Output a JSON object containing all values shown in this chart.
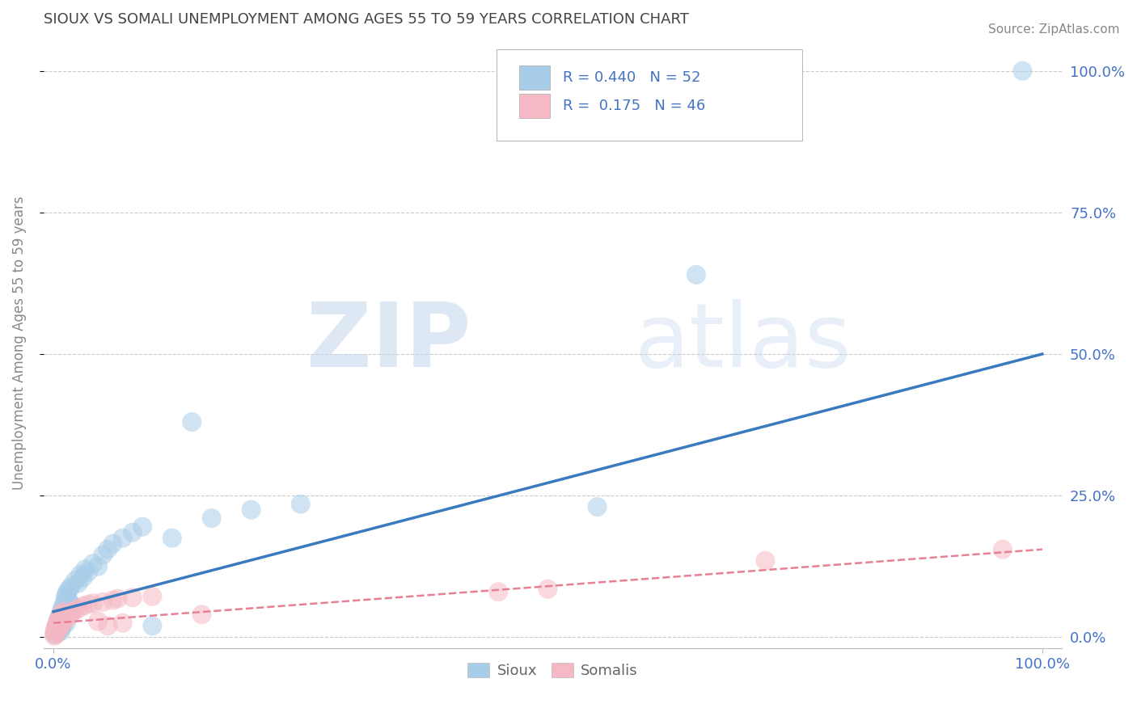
{
  "title": "SIOUX VS SOMALI UNEMPLOYMENT AMONG AGES 55 TO 59 YEARS CORRELATION CHART",
  "source": "Source: ZipAtlas.com",
  "ylabel": "Unemployment Among Ages 55 to 59 years",
  "watermark_zip": "ZIP",
  "watermark_atlas": "atlas",
  "sioux_R": 0.44,
  "sioux_N": 52,
  "somali_R": 0.175,
  "somali_N": 46,
  "sioux_color": "#a8cde8",
  "somali_color": "#f5b8c4",
  "sioux_line_color": "#3a7abf",
  "somali_line_color": "#e87f95",
  "background_color": "#ffffff",
  "grid_color": "#cccccc",
  "title_color": "#444444",
  "axis_label_color": "#4472c4",
  "legend_text_color": "#4472c4",
  "ylabel_color": "#888888",
  "source_color": "#888888",
  "sioux_x": [
    0.001,
    0.002,
    0.003,
    0.003,
    0.004,
    0.004,
    0.005,
    0.005,
    0.006,
    0.006,
    0.007,
    0.007,
    0.008,
    0.008,
    0.009,
    0.009,
    0.01,
    0.01,
    0.011,
    0.011,
    0.012,
    0.013,
    0.013,
    0.014,
    0.015,
    0.016,
    0.017,
    0.018,
    0.02,
    0.022,
    0.025,
    0.027,
    0.03,
    0.032,
    0.035,
    0.04,
    0.045,
    0.05,
    0.055,
    0.06,
    0.07,
    0.08,
    0.09,
    0.1,
    0.12,
    0.14,
    0.16,
    0.2,
    0.25,
    0.55,
    0.65,
    0.98
  ],
  "sioux_y": [
    0.005,
    0.01,
    0.015,
    0.02,
    0.008,
    0.025,
    0.012,
    0.03,
    0.018,
    0.035,
    0.01,
    0.04,
    0.015,
    0.045,
    0.02,
    0.05,
    0.025,
    0.055,
    0.03,
    0.06,
    0.07,
    0.025,
    0.075,
    0.08,
    0.065,
    0.085,
    0.06,
    0.09,
    0.055,
    0.1,
    0.095,
    0.11,
    0.105,
    0.12,
    0.115,
    0.13,
    0.125,
    0.145,
    0.155,
    0.165,
    0.175,
    0.185,
    0.195,
    0.02,
    0.175,
    0.38,
    0.21,
    0.225,
    0.235,
    0.23,
    0.64,
    1.0
  ],
  "somali_x": [
    0.001,
    0.001,
    0.002,
    0.002,
    0.003,
    0.003,
    0.004,
    0.004,
    0.005,
    0.005,
    0.006,
    0.006,
    0.007,
    0.007,
    0.008,
    0.008,
    0.009,
    0.009,
    0.01,
    0.01,
    0.011,
    0.012,
    0.013,
    0.014,
    0.015,
    0.016,
    0.018,
    0.02,
    0.022,
    0.025,
    0.03,
    0.035,
    0.04,
    0.045,
    0.05,
    0.055,
    0.06,
    0.065,
    0.07,
    0.08,
    0.1,
    0.15,
    0.45,
    0.5,
    0.72,
    0.96
  ],
  "somali_y": [
    0.002,
    0.01,
    0.005,
    0.015,
    0.008,
    0.02,
    0.012,
    0.025,
    0.015,
    0.03,
    0.018,
    0.035,
    0.02,
    0.038,
    0.022,
    0.04,
    0.025,
    0.042,
    0.028,
    0.045,
    0.03,
    0.033,
    0.032,
    0.035,
    0.038,
    0.04,
    0.042,
    0.045,
    0.048,
    0.05,
    0.055,
    0.058,
    0.06,
    0.028,
    0.062,
    0.02,
    0.065,
    0.068,
    0.025,
    0.07,
    0.072,
    0.04,
    0.08,
    0.085,
    0.135,
    0.155
  ],
  "ytick_labels": [
    "0.0%",
    "25.0%",
    "50.0%",
    "75.0%",
    "100.0%"
  ],
  "ytick_values": [
    0.0,
    0.25,
    0.5,
    0.75,
    1.0
  ],
  "xtick_labels": [
    "0.0%",
    "100.0%"
  ],
  "xtick_values": [
    0.0,
    1.0
  ],
  "sioux_line_start_y": 0.045,
  "sioux_line_end_y": 0.5,
  "somali_line_start_y": 0.025,
  "somali_line_end_y": 0.155
}
